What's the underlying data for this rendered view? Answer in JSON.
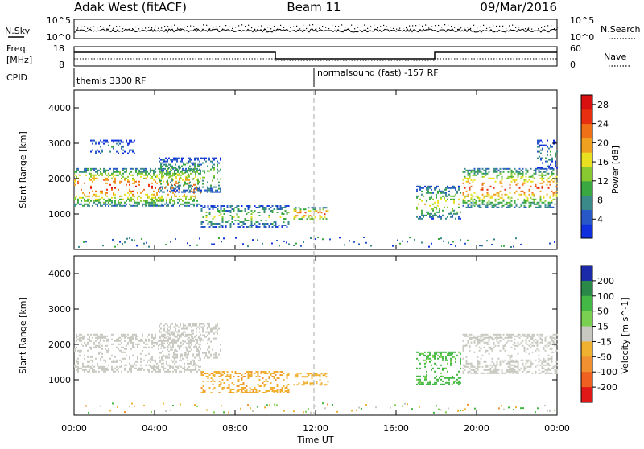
{
  "header": {
    "radar": "Adak West (fitACF)",
    "beam": "Beam 11",
    "date": "09/Mar/2016"
  },
  "top_panels": {
    "nsky_label": "N.Sky",
    "nsearch_label": "N.Search",
    "nsky_ticks": [
      "10^5",
      "10^0"
    ],
    "nsearch_ticks": [
      "10^5",
      "10^0"
    ],
    "freq_label": "Freq.",
    "freq_unit": "[MHz]",
    "nave_label": "Nave",
    "freq_ticks": [
      "18",
      "8"
    ],
    "nave_ticks": [
      "60",
      "0"
    ],
    "cpid_label": "CPID",
    "cpid_segments": [
      {
        "text": "themis 3300 RF",
        "start_hour": 0
      },
      {
        "text": "normalsound (fast) -157 RF",
        "start_hour": 12
      }
    ]
  },
  "chart_data": [
    {
      "type": "heatmap",
      "title": "",
      "xlabel": "Time UT",
      "ylabel": "Slant Range [km]",
      "xlim": [
        0,
        24
      ],
      "ylim": [
        0,
        4500
      ],
      "x_ticks": [
        "00:00",
        "04:00",
        "08:00",
        "12:00",
        "16:00",
        "20:00",
        "00:00"
      ],
      "y_ticks": [
        1000,
        2000,
        3000,
        4000
      ],
      "colorbar": {
        "label": "Power [dB]",
        "ticks": [
          4,
          8,
          12,
          16,
          20,
          24,
          28
        ],
        "range": [
          0,
          30
        ],
        "colors": [
          "#1030e0",
          "#2858c8",
          "#3a8a8a",
          "#3aa840",
          "#88c830",
          "#e8e020",
          "#f0a020",
          "#f07018",
          "#e83010",
          "#d81010"
        ]
      },
      "echo_regions": [
        {
          "t_start": 0.0,
          "t_end": 6.3,
          "range_low_km": 1250,
          "range_high_km": 2300,
          "peak_db": 26
        },
        {
          "t_start": 4.2,
          "t_end": 7.3,
          "range_low_km": 1600,
          "range_high_km": 2600,
          "peak_db": 14
        },
        {
          "t_start": 6.3,
          "t_end": 10.7,
          "range_low_km": 650,
          "range_high_km": 1250,
          "peak_db": 14
        },
        {
          "t_start": 10.9,
          "t_end": 12.6,
          "range_low_km": 850,
          "range_high_km": 1200,
          "peak_db": 26
        },
        {
          "t_start": 17.0,
          "t_end": 19.2,
          "range_low_km": 850,
          "range_high_km": 1800,
          "peak_db": 16
        },
        {
          "t_start": 19.3,
          "t_end": 24.0,
          "range_low_km": 1200,
          "range_high_km": 2300,
          "peak_db": 24
        },
        {
          "t_start": 0.8,
          "t_end": 3.0,
          "range_low_km": 2700,
          "range_high_km": 3100,
          "peak_db": 8
        },
        {
          "t_start": 23.0,
          "t_end": 24.0,
          "range_low_km": 2300,
          "range_high_km": 3100,
          "peak_db": 8
        }
      ]
    },
    {
      "type": "heatmap",
      "title": "",
      "xlabel": "Time UT",
      "ylabel": "Slant Range [km]",
      "xlim": [
        0,
        24
      ],
      "ylim": [
        0,
        4500
      ],
      "x_ticks": [
        "00:00",
        "04:00",
        "08:00",
        "12:00",
        "16:00",
        "20:00",
        "00:00"
      ],
      "y_ticks": [
        1000,
        2000,
        3000,
        4000
      ],
      "colorbar": {
        "label": "Velocity [m s^-1]",
        "ticks": [
          200,
          100,
          50,
          15,
          -15,
          -50,
          -100,
          -200
        ],
        "colors": [
          "#1a2aa8",
          "#2a8848",
          "#44b844",
          "#7ad050",
          "#c8c8c0",
          "#f0b030",
          "#f09030",
          "#f06020",
          "#e01818"
        ]
      },
      "echo_regions": [
        {
          "t_start": 0.0,
          "t_end": 6.3,
          "range_low_km": 1250,
          "range_high_km": 2300,
          "velocity_ms": 0
        },
        {
          "t_start": 4.2,
          "t_end": 7.3,
          "range_low_km": 1600,
          "range_high_km": 2600,
          "velocity_ms": 0
        },
        {
          "t_start": 6.3,
          "t_end": 10.7,
          "range_low_km": 650,
          "range_high_km": 1250,
          "velocity_ms": -40
        },
        {
          "t_start": 10.9,
          "t_end": 12.6,
          "range_low_km": 850,
          "range_high_km": 1200,
          "velocity_ms": -30
        },
        {
          "t_start": 17.0,
          "t_end": 19.2,
          "range_low_km": 850,
          "range_high_km": 1800,
          "velocity_ms": 40
        },
        {
          "t_start": 19.3,
          "t_end": 24.0,
          "range_low_km": 1200,
          "range_high_km": 2300,
          "velocity_ms": 0
        }
      ]
    }
  ],
  "time_axis_label": "Time UT"
}
